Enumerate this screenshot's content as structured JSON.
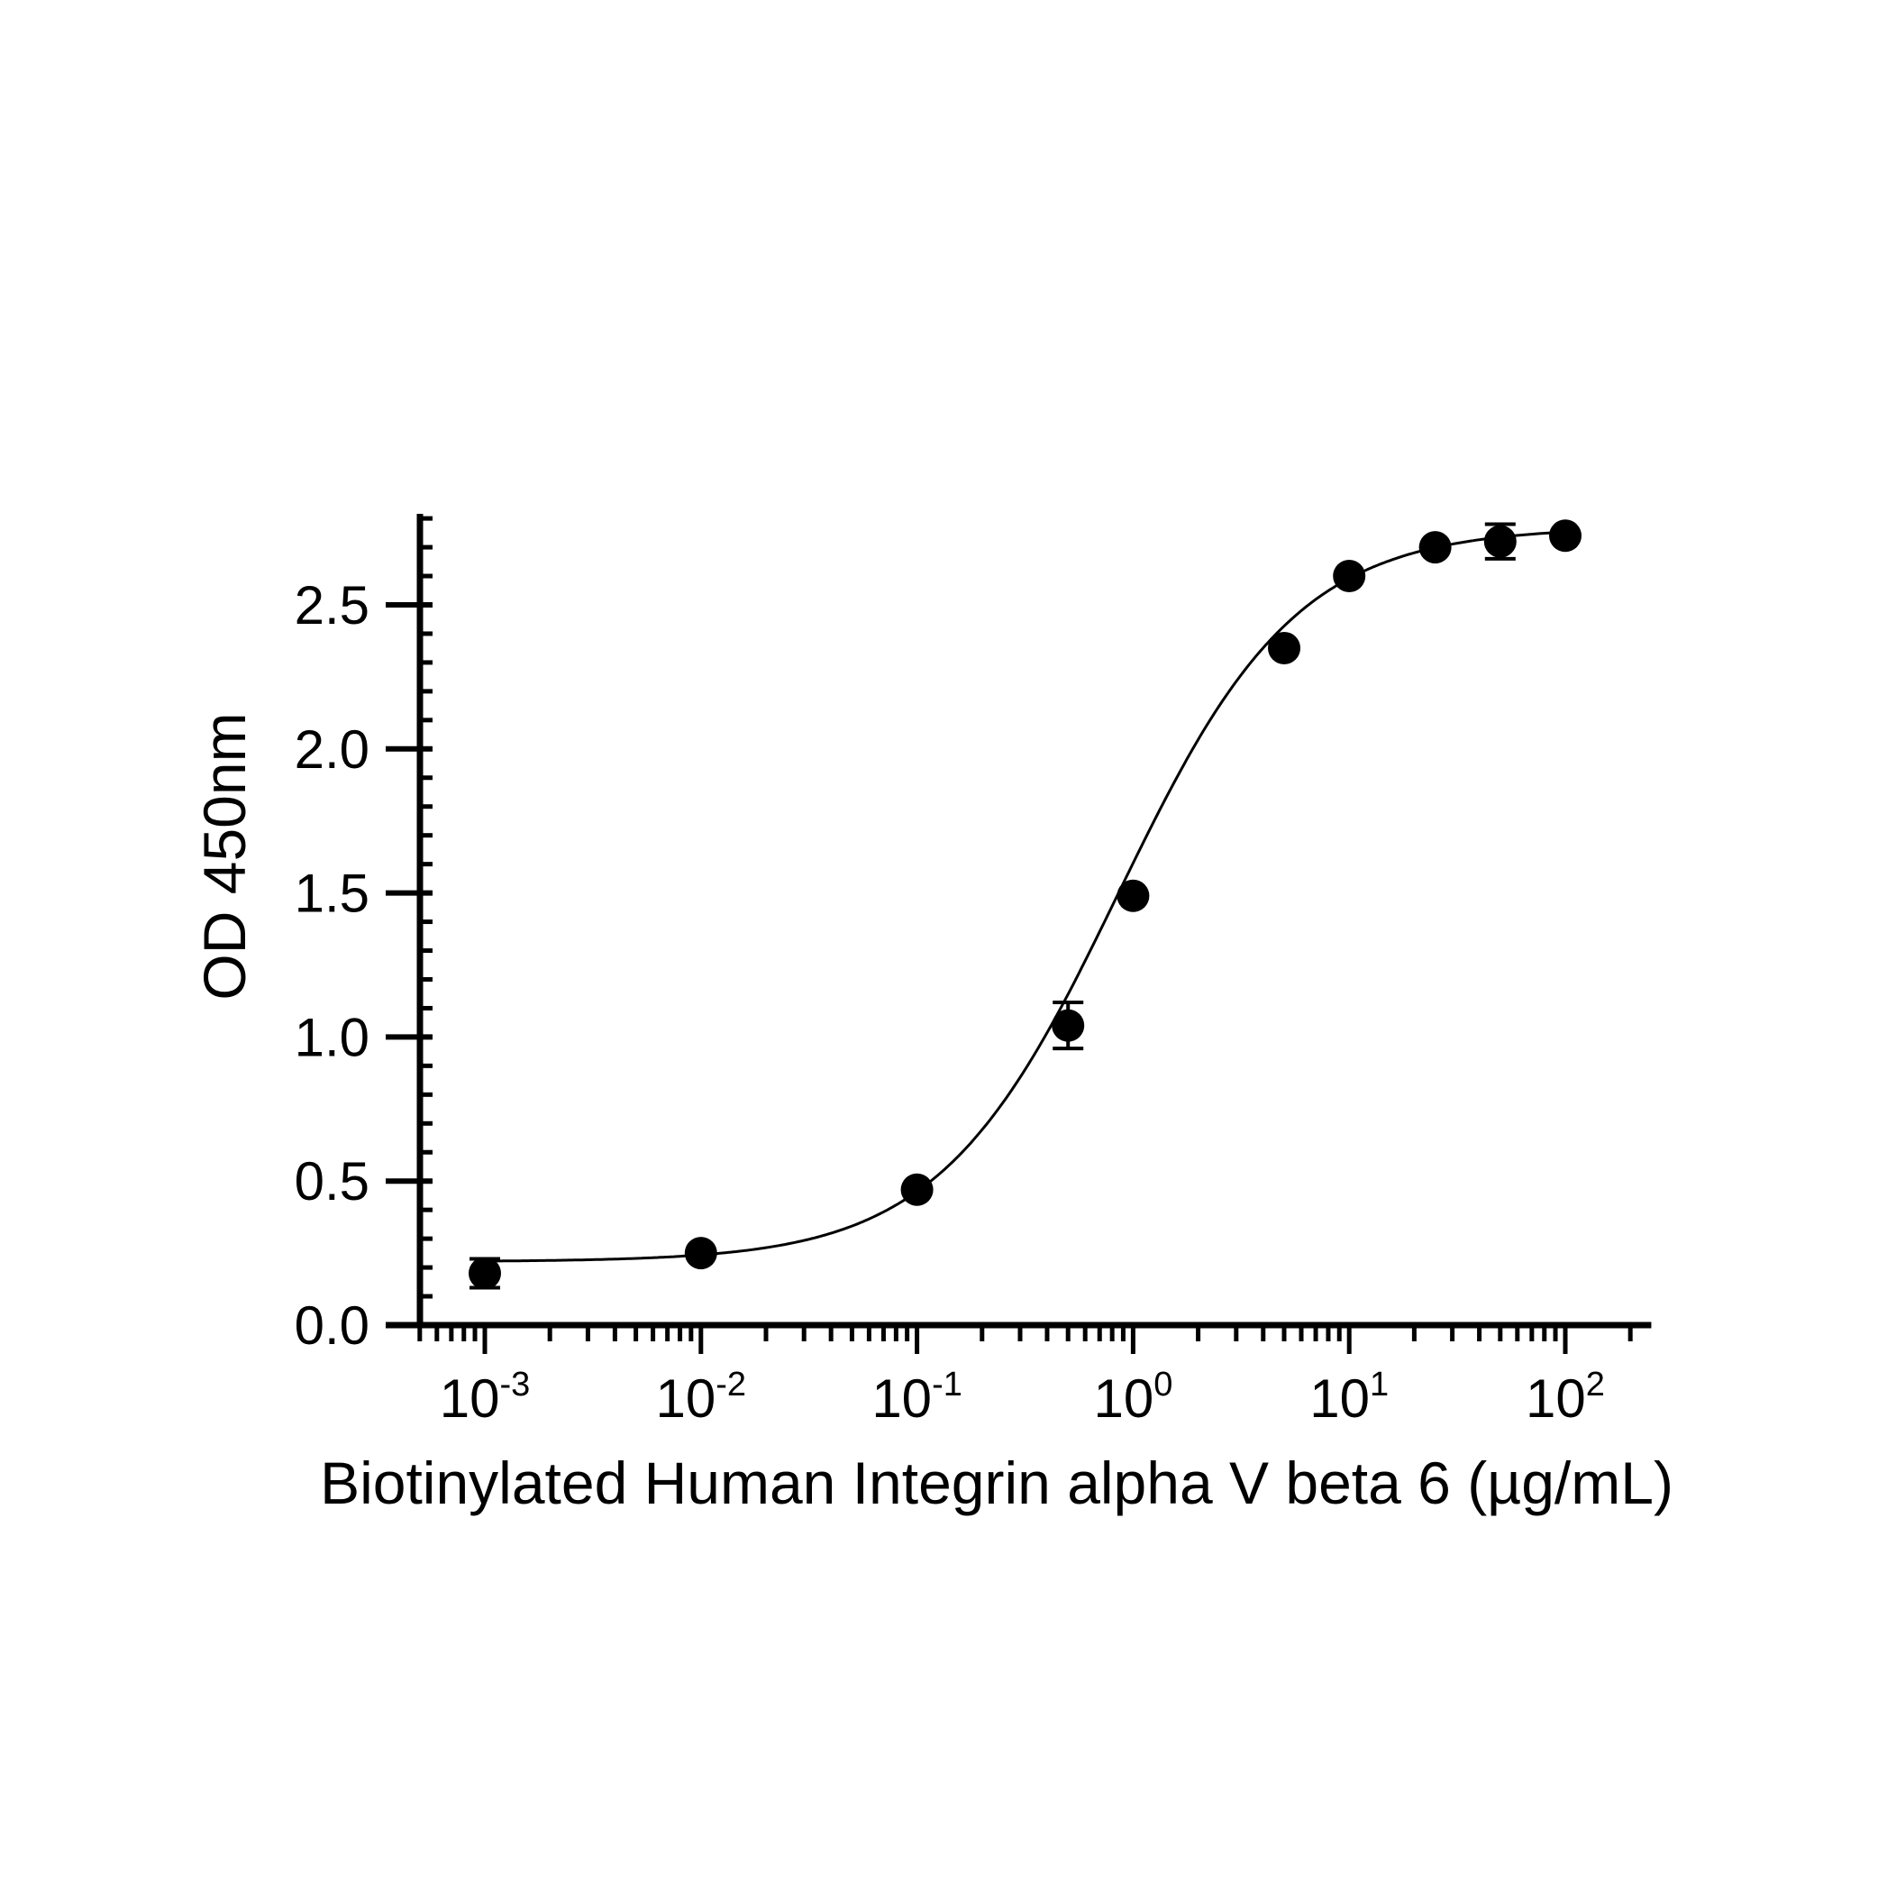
{
  "chart_data": {
    "type": "scatter",
    "title": "",
    "xlabel": "Biotinylated Human Integrin alpha V beta 6 (µg/mL)",
    "ylabel": "OD 450nm",
    "x_scale": "log",
    "xlim": [
      0.0005,
      250
    ],
    "ylim": [
      0.0,
      2.8
    ],
    "x_ticks": [
      {
        "value": 0.001,
        "base": "10",
        "exp": "-3"
      },
      {
        "value": 0.01,
        "base": "10",
        "exp": "-2"
      },
      {
        "value": 0.1,
        "base": "10",
        "exp": "-1"
      },
      {
        "value": 1,
        "base": "10",
        "exp": "0"
      },
      {
        "value": 10,
        "base": "10",
        "exp": "1"
      },
      {
        "value": 100,
        "base": "10",
        "exp": "2"
      }
    ],
    "y_ticks": [
      "0.0",
      "0.5",
      "1.0",
      "1.5",
      "2.0",
      "2.5"
    ],
    "grid": false,
    "legend": "none",
    "marker_color": "#000000",
    "series": [
      {
        "x": [
          0.001,
          0.01,
          0.1,
          0.5,
          1,
          5,
          10,
          25,
          50,
          100
        ],
        "y": [
          0.18,
          0.25,
          0.47,
          1.04,
          1.49,
          2.35,
          2.6,
          2.7,
          2.72,
          2.74
        ],
        "error": [
          0.05,
          0.02,
          0.02,
          0.08,
          0.02,
          0.02,
          0.02,
          0.02,
          0.06,
          0.02
        ]
      }
    ],
    "fit_curve": {
      "model": "4PL",
      "bottom": 0.22,
      "top": 2.77,
      "ec50": 0.85,
      "hill": 1.05
    }
  }
}
